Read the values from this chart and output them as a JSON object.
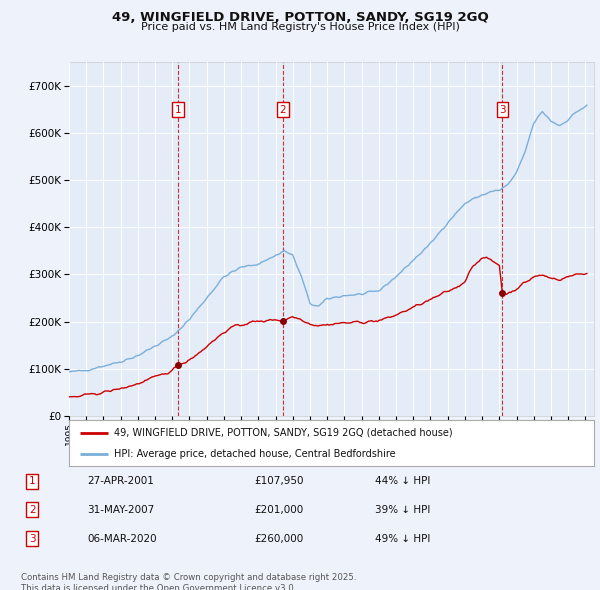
{
  "title": "49, WINGFIELD DRIVE, POTTON, SANDY, SG19 2GQ",
  "subtitle": "Price paid vs. HM Land Registry's House Price Index (HPI)",
  "background_color": "#eef2fb",
  "plot_bg_color": "#e4ecf8",
  "grid_color": "#ffffff",
  "ylim": [
    0,
    750000
  ],
  "yticks": [
    0,
    100000,
    200000,
    300000,
    400000,
    500000,
    600000,
    700000
  ],
  "xlim_start": 1995.0,
  "xlim_end": 2025.5,
  "transactions": [
    {
      "num": 1,
      "year": 2001.32,
      "price": 107950,
      "label": "27-APR-2001",
      "price_str": "£107,950",
      "note": "44% ↓ HPI"
    },
    {
      "num": 2,
      "year": 2007.42,
      "price": 201000,
      "label": "31-MAY-2007",
      "price_str": "£201,000",
      "note": "39% ↓ HPI"
    },
    {
      "num": 3,
      "year": 2020.18,
      "price": 260000,
      "label": "06-MAR-2020",
      "price_str": "£260,000",
      "note": "49% ↓ HPI"
    }
  ],
  "red_line_color": "#cc0000",
  "blue_line_color": "#7aafda",
  "dot_color": "#8b0000",
  "legend_label_red": "49, WINGFIELD DRIVE, POTTON, SANDY, SG19 2GQ (detached house)",
  "legend_label_blue": "HPI: Average price, detached house, Central Bedfordshire",
  "footer": "Contains HM Land Registry data © Crown copyright and database right 2025.\nThis data is licensed under the Open Government Licence v3.0."
}
